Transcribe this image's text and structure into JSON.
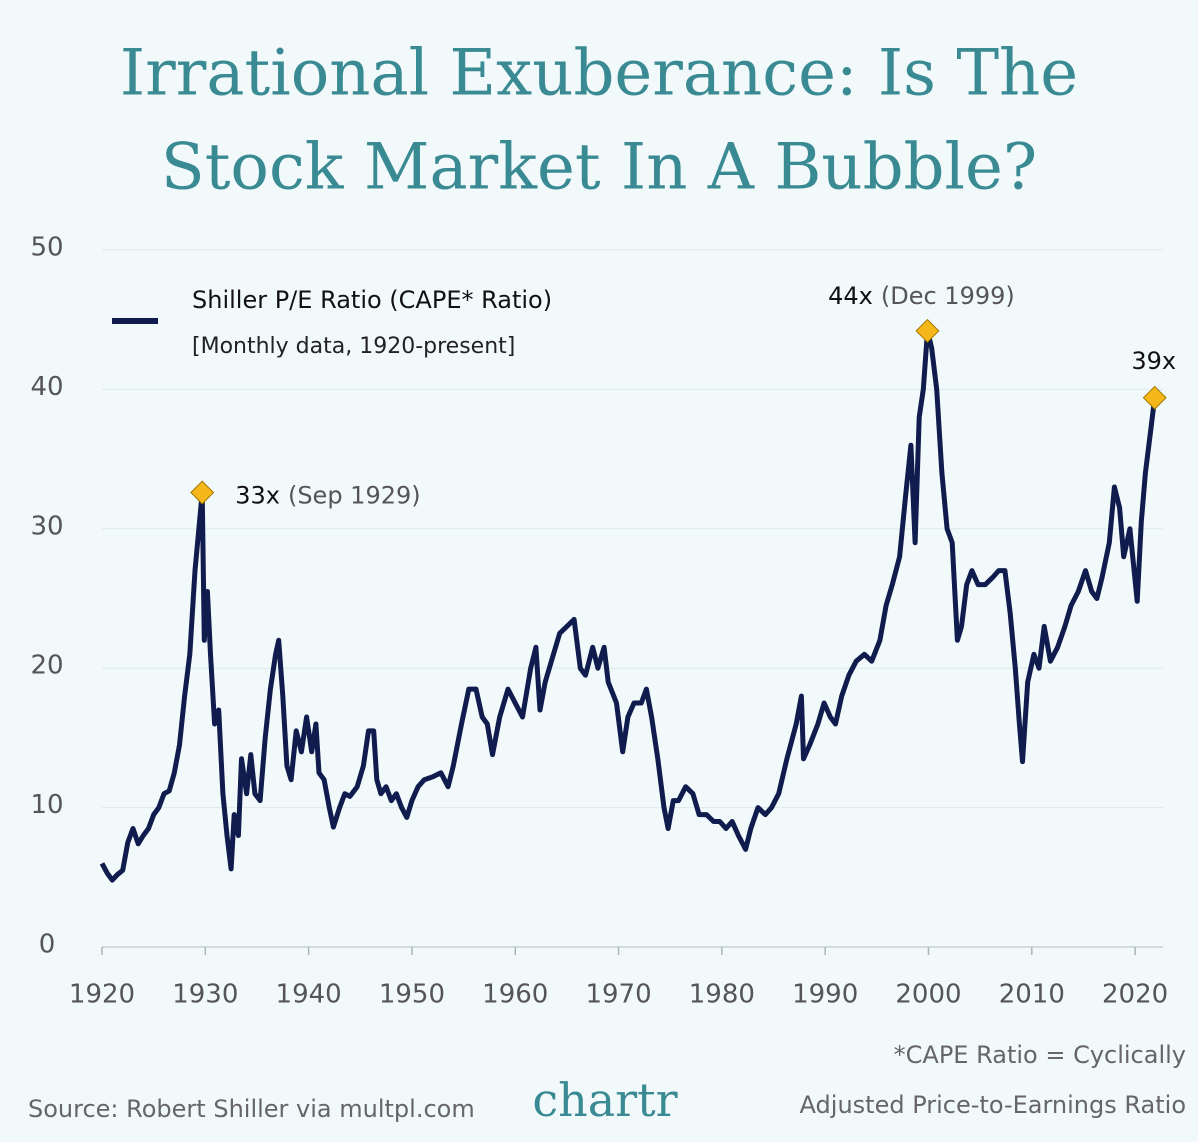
{
  "chart_data": {
    "type": "line",
    "title": [
      "Irrational Exuberance: Is The",
      "Stock Market In A Bubble?"
    ],
    "legend_note": "[Monthly data, 1920-present]",
    "x": [
      1920,
      1920.5,
      1921,
      1921.5,
      1922,
      1922.5,
      1923,
      1923.5,
      1924,
      1924.5,
      1925,
      1925.5,
      1926,
      1926.5,
      1927,
      1927.5,
      1928,
      1928.5,
      1929,
      1929.7,
      1929.9,
      1930.2,
      1930.5,
      1930.9,
      1931.3,
      1931.7,
      1932.1,
      1932.5,
      1932.8,
      1933.2,
      1933.5,
      1934,
      1934.4,
      1934.8,
      1935.3,
      1935.8,
      1936.3,
      1936.8,
      1937.1,
      1937.5,
      1937.9,
      1938.3,
      1938.8,
      1939.3,
      1939.8,
      1940.3,
      1940.7,
      1941,
      1941.5,
      1942,
      1942.4,
      1943,
      1943.5,
      1944,
      1944.7,
      1945.3,
      1945.8,
      1946.3,
      1946.6,
      1947,
      1947.5,
      1948,
      1948.5,
      1949,
      1949.5,
      1950,
      1950.6,
      1951.2,
      1952,
      1952.8,
      1953.5,
      1954,
      1954.8,
      1955.5,
      1956.2,
      1956.8,
      1957.3,
      1957.8,
      1958.5,
      1959.3,
      1960,
      1960.7,
      1961.5,
      1962,
      1962.4,
      1962.9,
      1963.5,
      1964.3,
      1965,
      1965.7,
      1966.3,
      1966.8,
      1967.5,
      1968,
      1968.6,
      1969,
      1969.8,
      1970.4,
      1970.9,
      1971.5,
      1972.2,
      1972.7,
      1973.2,
      1973.8,
      1974.4,
      1974.8,
      1975.3,
      1975.8,
      1976.5,
      1977.2,
      1977.8,
      1978.5,
      1979.2,
      1979.8,
      1980.4,
      1981,
      1981.6,
      1982.3,
      1982.8,
      1983.5,
      1984.2,
      1984.8,
      1985.5,
      1986.3,
      1987.2,
      1987.7,
      1987.9,
      1988.5,
      1989.3,
      1989.9,
      1990.5,
      1991,
      1991.6,
      1992.3,
      1993,
      1993.8,
      1994.5,
      1995.3,
      1995.9,
      1996.5,
      1997.2,
      1997.8,
      1998.3,
      1998.7,
      1999.1,
      1999.5,
      1999.9,
      2000.3,
      2000.8,
      2001.3,
      2001.8,
      2002.3,
      2002.8,
      2003.2,
      2003.7,
      2004.2,
      2004.8,
      2005.5,
      2006.2,
      2006.8,
      2007.4,
      2007.9,
      2008.4,
      2008.8,
      2009.1,
      2009.6,
      2010.2,
      2010.7,
      2011.2,
      2011.8,
      2012.5,
      2013.2,
      2013.8,
      2014.5,
      2015.2,
      2015.8,
      2016.3,
      2016.8,
      2017.5,
      2018,
      2018.5,
      2018.9,
      2019.5,
      2020.2,
      2020.6,
      2021,
      2021.5,
      2021.9
    ],
    "series": [
      {
        "name": "Shiller P/E Ratio (CAPE* Ratio)",
        "color": "#0f1c4d",
        "values": [
          6.0,
          5.3,
          4.8,
          5.2,
          5.5,
          7.5,
          8.5,
          7.4,
          8.0,
          8.5,
          9.5,
          10.0,
          11.0,
          11.2,
          12.5,
          14.5,
          18,
          21,
          27,
          32.6,
          22,
          25.5,
          21,
          16,
          17,
          11,
          8,
          5.6,
          9.5,
          8,
          13.5,
          11,
          13.8,
          11,
          10.5,
          15,
          18.5,
          21,
          22,
          18,
          13,
          12,
          15.5,
          14,
          16.5,
          14,
          16,
          12.5,
          12,
          10,
          8.6,
          10,
          11,
          10.8,
          11.5,
          13,
          15.5,
          15.5,
          12,
          11,
          11.5,
          10.5,
          11,
          10,
          9.3,
          10.5,
          11.5,
          12,
          12.2,
          12.5,
          11.5,
          13,
          16,
          18.5,
          18.5,
          16.5,
          16,
          13.8,
          16.5,
          18.5,
          17.5,
          16.5,
          20,
          21.5,
          17,
          19,
          20.5,
          22.5,
          23,
          23.5,
          20,
          19.5,
          21.5,
          20,
          21.5,
          19,
          17.5,
          14,
          16.5,
          17.5,
          17.5,
          18.5,
          16.5,
          13.5,
          10,
          8.5,
          10.5,
          10.5,
          11.5,
          11,
          9.5,
          9.5,
          9,
          9,
          8.5,
          9,
          8,
          7,
          8.5,
          10,
          9.5,
          10,
          11,
          13.5,
          16,
          18,
          13.5,
          14.5,
          16,
          17.5,
          16.5,
          16,
          18,
          19.5,
          20.5,
          21,
          20.5,
          22,
          24.5,
          26,
          28,
          32.5,
          36,
          29,
          38,
          40,
          44.2,
          43,
          40,
          34,
          30,
          29,
          22,
          23,
          26,
          27,
          26,
          26,
          26.5,
          27,
          27,
          24,
          20,
          16,
          13.3,
          19,
          21,
          20,
          23,
          20.5,
          21.5,
          23,
          24.5,
          25.5,
          27,
          25.5,
          25,
          26.5,
          29,
          33,
          31.5,
          28,
          30,
          24.8,
          30.5,
          34,
          37,
          39.4
        ]
      }
    ],
    "annotations": [
      {
        "x": 1929.7,
        "y": 32.6,
        "label": "33x",
        "detail": "(Sep 1929)"
      },
      {
        "x": 1999.9,
        "y": 44.2,
        "label": "44x",
        "detail": "(Dec 1999)"
      },
      {
        "x": 2021.9,
        "y": 39.4,
        "label": "39x"
      }
    ],
    "marker_color": "#f5b719",
    "xlim": [
      1920,
      2022.7
    ],
    "ylim": [
      0,
      50
    ],
    "xticks": [
      1920,
      1930,
      1940,
      1950,
      1960,
      1970,
      1980,
      1990,
      2000,
      2010,
      2020
    ],
    "yticks": [
      0,
      10,
      20,
      30,
      40,
      50
    ],
    "grid": true,
    "source": "Source: Robert Shiller via multpl.com",
    "brand": "chartr",
    "footnote": [
      "*CAPE Ratio = Cyclically",
      "Adjusted Price-to-Earnings Ratio"
    ]
  }
}
